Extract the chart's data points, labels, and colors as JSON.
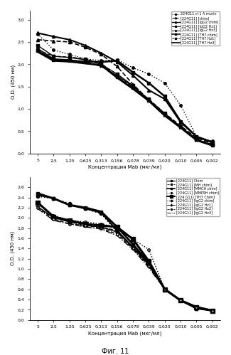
{
  "x_labels": [
    "5",
    "2,5",
    "1,25",
    "0,625",
    "0,313",
    "0,156",
    "0,078",
    "0,039",
    "0,020",
    "0,010",
    "0,005",
    "0,002"
  ],
  "x_values": [
    1,
    2,
    3,
    4,
    5,
    6,
    7,
    8,
    9,
    10,
    11,
    12
  ],
  "top_chart": {
    "ylabel": "О.D. (450 нм)",
    "xlabel": "Концентрация Mab (мкг/мл)",
    "ylim": [
      0.0,
      3.2
    ],
    "yticks": [
      0.0,
      0.5,
      1.0,
      1.5,
      2.0,
      2.5,
      3.0
    ],
    "series": [
      {
        "label": "224G11 cl 1 A murin",
        "color": "black",
        "linestyle": "dotted",
        "marker": "o",
        "markersize": 2.5,
        "linewidth": 1.0,
        "markerfacecolor": "black",
        "data": [
          2.68,
          2.32,
          2.22,
          2.12,
          2.08,
          2.1,
          1.92,
          1.78,
          1.58,
          1.08,
          0.38,
          0.28
        ]
      },
      {
        "label": "[224G11] [chim]",
        "color": "black",
        "linestyle": "dashed",
        "marker": "^",
        "markersize": 3,
        "linewidth": 1.2,
        "markerfacecolor": "black",
        "data": [
          2.55,
          2.52,
          2.5,
          2.38,
          2.22,
          1.95,
          1.55,
          1.2,
          0.9,
          0.62,
          0.35,
          0.22
        ]
      },
      {
        "label": "[224G11] [IgG2 chim]",
        "color": "black",
        "linestyle": "solid",
        "marker": "^",
        "markersize": 3,
        "linewidth": 1.5,
        "markerfacecolor": "black",
        "data": [
          2.7,
          2.62,
          2.55,
          2.42,
          2.25,
          2.05,
          1.75,
          1.42,
          1.22,
          0.7,
          0.38,
          0.25
        ]
      },
      {
        "label": "[224G11] [IgG2 Hz1]",
        "color": "black",
        "linestyle": "solid",
        "marker": "s",
        "markersize": 2.5,
        "linewidth": 1.0,
        "markerfacecolor": "black",
        "data": [
          2.42,
          2.18,
          2.15,
          2.1,
          2.0,
          1.78,
          1.52,
          1.2,
          0.88,
          0.6,
          0.32,
          0.18
        ]
      },
      {
        "label": "[224G11] [IgG2 Hz3]",
        "color": "black",
        "linestyle": "solid",
        "marker": "x",
        "markersize": 3,
        "linewidth": 1.0,
        "markerfacecolor": "black",
        "data": [
          2.35,
          2.12,
          2.1,
          2.05,
          1.95,
          1.75,
          1.5,
          1.18,
          0.85,
          0.58,
          0.3,
          0.18
        ]
      },
      {
        "label": "[224G11] [TH7 chim]",
        "color": "black",
        "linestyle": "solid",
        "marker": "s",
        "markersize": 3,
        "linewidth": 1.8,
        "markerfacecolor": "black",
        "data": [
          2.3,
          2.1,
          2.08,
          2.06,
          2.05,
          2.08,
          1.82,
          1.58,
          1.28,
          0.72,
          0.38,
          0.25
        ]
      },
      {
        "label": "[224G11] [TH7 Hz1]",
        "color": "black",
        "linestyle": "dashed",
        "marker": "s",
        "markersize": 2.5,
        "linewidth": 1.0,
        "markerfacecolor": "black",
        "data": [
          2.32,
          2.18,
          2.16,
          2.12,
          2.02,
          1.72,
          1.48,
          1.22,
          0.9,
          0.6,
          0.32,
          0.2
        ]
      },
      {
        "label": "[224G11] [TH7 Hz3]",
        "color": "black",
        "linestyle": "solid",
        "marker": "None",
        "markersize": 2.5,
        "linewidth": 2.0,
        "markerfacecolor": "black",
        "data": [
          2.28,
          2.08,
          2.06,
          2.02,
          1.98,
          1.7,
          1.45,
          1.18,
          0.85,
          0.58,
          0.3,
          0.18
        ]
      }
    ]
  },
  "bottom_chart": {
    "ylabel": "О.D. (450 нм)",
    "xlabel": "Концентрация Mab (мкг/мл)",
    "ylim": [
      0.0,
      2.8
    ],
    "yticks": [
      0.0,
      0.2,
      0.4,
      0.6,
      0.8,
      1.0,
      1.2,
      1.4,
      1.6,
      1.8,
      2.0,
      2.2,
      2.4,
      2.6
    ],
    "series": [
      {
        "label": "[224G11] Chim",
        "color": "black",
        "linestyle": "solid",
        "marker": "s",
        "markersize": 2.5,
        "linewidth": 1.5,
        "markerfacecolor": "black",
        "data": [
          2.45,
          2.38,
          2.25,
          2.18,
          2.1,
          1.75,
          1.42,
          1.1,
          0.6,
          0.38,
          0.22,
          0.18
        ]
      },
      {
        "label": "[224G11] [MH chim]",
        "color": "black",
        "linestyle": "dashed",
        "marker": "s",
        "markersize": 2.5,
        "linewidth": 1.0,
        "markerfacecolor": "black",
        "data": [
          2.3,
          2.02,
          1.92,
          1.85,
          1.82,
          1.75,
          1.42,
          1.08,
          0.6,
          0.38,
          0.22,
          0.18
        ]
      },
      {
        "label": "[224G11] [MMCH chim]",
        "color": "black",
        "linestyle": "solid",
        "marker": "s",
        "markersize": 3.5,
        "linewidth": 2.0,
        "markerfacecolor": "black",
        "data": [
          2.48,
          2.38,
          2.25,
          2.2,
          2.12,
          1.82,
          1.48,
          1.12,
          0.6,
          0.38,
          0.25,
          0.18
        ]
      },
      {
        "label": "[224G11] [MMP9H chim]",
        "color": "black",
        "linestyle": "dotted",
        "marker": "o",
        "markersize": 2.5,
        "linewidth": 1.0,
        "markerfacecolor": "white",
        "data": [
          2.28,
          2.05,
          1.95,
          1.92,
          1.88,
          1.82,
          1.58,
          1.38,
          0.6,
          0.38,
          0.25,
          0.18
        ]
      },
      {
        "label": "[224 G11] [TH7 Chim]",
        "color": "black",
        "linestyle": "solid",
        "marker": "s",
        "markersize": 4,
        "linewidth": 2.2,
        "markerfacecolor": "black",
        "data": [
          2.3,
          2.02,
          1.95,
          1.88,
          1.85,
          1.82,
          1.58,
          1.15,
          0.6,
          0.38,
          0.25,
          0.18
        ]
      },
      {
        "label": "[224G11] [IgG2 chim]",
        "color": "black",
        "linestyle": "dotted",
        "marker": "o",
        "markersize": 3,
        "linewidth": 1.2,
        "markerfacecolor": "black",
        "data": [
          2.42,
          2.38,
          2.28,
          2.18,
          2.08,
          1.72,
          1.42,
          1.08,
          0.6,
          0.38,
          0.25,
          0.18
        ]
      },
      {
        "label": "[224G11] [IgG2 Hz1]",
        "color": "black",
        "linestyle": "solid",
        "marker": "+",
        "markersize": 4,
        "linewidth": 1.0,
        "markerfacecolor": "black",
        "data": [
          2.22,
          2.0,
          1.92,
          1.88,
          1.82,
          1.72,
          1.42,
          1.08,
          0.6,
          0.38,
          0.25,
          0.18
        ]
      },
      {
        "label": "[224G11] [IgG2 Hz2]",
        "color": "black",
        "linestyle": "dashed",
        "marker": "o",
        "markersize": 2.5,
        "linewidth": 1.0,
        "markerfacecolor": "white",
        "data": [
          2.2,
          1.98,
          1.88,
          1.85,
          1.8,
          1.68,
          1.4,
          1.05,
          0.6,
          0.38,
          0.25,
          0.18
        ]
      },
      {
        "label": "[224G11] [IgG2 Hz3]",
        "color": "black",
        "linestyle": "dashdot",
        "marker": "None",
        "markersize": 2.5,
        "linewidth": 1.0,
        "markerfacecolor": "black",
        "data": [
          2.18,
          1.95,
          1.88,
          1.82,
          1.78,
          1.65,
          1.38,
          1.02,
          0.6,
          0.38,
          0.25,
          0.18
        ]
      }
    ]
  },
  "fig_label": "Фиг. 11",
  "background_color": "#ffffff"
}
